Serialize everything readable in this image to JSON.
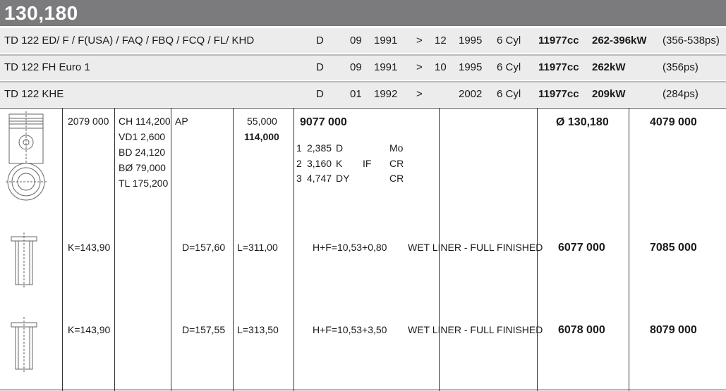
{
  "title": "130,180",
  "engines": [
    {
      "model": "TD 122 ED/ F / F(USA) / FAQ / FBQ / FCQ / FL/ KHD",
      "fuel": "D",
      "from_month": "09",
      "from_year": "1991",
      "arrow": ">",
      "to_month": "12",
      "to_year": "1995",
      "cyl": "6 Cyl",
      "cc": "11977cc",
      "kw": "262-396kW",
      "ps": "(356-538ps)"
    },
    {
      "model": "TD 122 FH Euro 1",
      "fuel": "D",
      "from_month": "09",
      "from_year": "1991",
      "arrow": ">",
      "to_month": "10",
      "to_year": "1995",
      "cyl": "6 Cyl",
      "cc": "11977cc",
      "kw": "262kW",
      "ps": "(356ps)"
    },
    {
      "model": "TD 122 KHE",
      "fuel": "D",
      "from_month": "01",
      "from_year": "1992",
      "arrow": ">",
      "to_month": "",
      "to_year": "2002",
      "cyl": "6 Cyl",
      "cc": "11977cc",
      "kw": "209kW",
      "ps": "(284ps)"
    }
  ],
  "piston": {
    "part_no": "2079 000",
    "specs": [
      "CH 114,200",
      "VD1 2,600",
      "BD 24,120",
      "BØ 79,000",
      "TL 175,200"
    ],
    "type": "AP",
    "value1": "55,000",
    "value2": "114,000",
    "ring_set": "9077 000",
    "rings": [
      {
        "n": "1",
        "width": "2,385",
        "type": "D",
        "extra": "",
        "material": "Mo"
      },
      {
        "n": "2",
        "width": "3,160",
        "type": "K",
        "extra": "IF",
        "material": "CR"
      },
      {
        "n": "3",
        "width": "4,747",
        "type": "DY",
        "extra": "",
        "material": "CR"
      }
    ],
    "diameter": "Ø 130,180",
    "kit": "4079 000"
  },
  "liners": [
    {
      "k": "K=143,90",
      "d": "D=157,60",
      "l": "L=311,00",
      "hf": "H+F=10,53+0,80",
      "desc": "WET LINER - FULL FINISHED",
      "liner_no": "6077 000",
      "kit": "7085 000"
    },
    {
      "k": "K=143,90",
      "d": "D=157,55",
      "l": "L=313,50",
      "hf": "H+F=10,53+3,50",
      "desc": "WET LINER - FULL FINISHED",
      "liner_no": "6078 000",
      "kit": "8079 000"
    }
  ]
}
